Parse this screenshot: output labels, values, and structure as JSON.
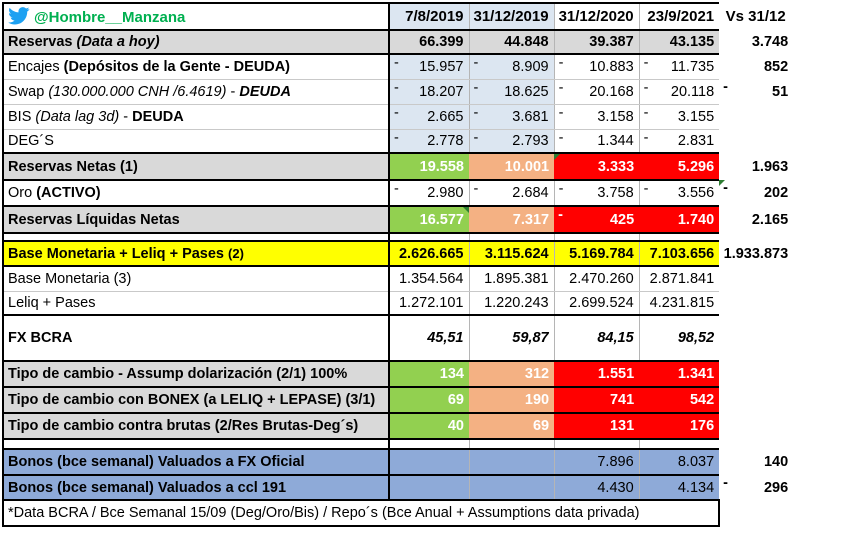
{
  "header": {
    "handle": "@Hombre__Manzana",
    "col1": "7/8/2019",
    "col2": "31/12/2019",
    "col3": "31/12/2020",
    "col4": "23/9/2021",
    "col5": "Vs 31/12"
  },
  "rows": {
    "reservas": {
      "label_a": "Reservas ",
      "label_b": "(Data a hoy)",
      "v1": "66.399",
      "v2": "44.848",
      "v3": "39.387",
      "v4": "43.135",
      "v5": "3.748"
    },
    "encajes": {
      "label_a": "Encajes ",
      "label_b": "(Depósitos de la Gente - DEUDA)",
      "d": "-",
      "v1": "15.957",
      "v2": "8.909",
      "v3": "10.883",
      "v4": "11.735",
      "v5": "852"
    },
    "swap": {
      "label_a": "Swap ",
      "label_b": "(130.000.000 CNH /6.4619)",
      "label_c": " - ",
      "label_d": "DEUDA",
      "d": "-",
      "v1": "18.207",
      "v2": "18.625",
      "v3": "20.168",
      "v4": "20.118",
      "v5": "51"
    },
    "bis": {
      "label_a": "BIS ",
      "label_b": "(Data lag 3d)",
      "label_c": " - ",
      "label_d": "DEUDA",
      "d": "-",
      "v1": "2.665",
      "v2": "3.681",
      "v3": "3.158",
      "v4": "3.155"
    },
    "deg": {
      "label": "DEG´S",
      "d": "-",
      "v1": "2.778",
      "v2": "2.793",
      "v3": "1.344",
      "v4": "2.831"
    },
    "netas": {
      "label": "Reservas Netas (1)",
      "v1": "19.558",
      "v2": "10.001",
      "v3": "3.333",
      "v4": "5.296",
      "v5": "1.963"
    },
    "oro": {
      "label_a": "Oro ",
      "label_b": "(ACTIVO)",
      "d": "-",
      "v1": "2.980",
      "v2": "2.684",
      "v3": "3.758",
      "v4": "3.556",
      "v5": "202"
    },
    "liquidas": {
      "label": "Reservas Líquidas Netas",
      "d": "-",
      "v1": "16.577",
      "v2": "7.317",
      "v3": "425",
      "v4": "1.740",
      "v5": "2.165"
    },
    "base_total": {
      "label_a": "Base Monetaria + Leliq + Pases ",
      "label_b": "(2)",
      "v1": "2.626.665",
      "v2": "3.115.624",
      "v3": "5.169.784",
      "v4": "7.103.656",
      "v5": "1.933.873"
    },
    "base": {
      "label": "Base Monetaria (3)",
      "v1": "1.354.564",
      "v2": "1.895.381",
      "v3": "2.470.260",
      "v4": "2.871.841"
    },
    "leliq": {
      "label": "Leliq + Pases",
      "v1": "1.272.101",
      "v2": "1.220.243",
      "v3": "2.699.524",
      "v4": "4.231.815"
    },
    "fx": {
      "label": "FX BCRA",
      "v1": "45,51",
      "v2": "59,87",
      "v3": "84,15",
      "v4": "98,52"
    },
    "tc1": {
      "label": "Tipo de cambio - Assump dolarización (2/1) 100%",
      "v1": "134",
      "v2": "312",
      "v3": "1.551",
      "v4": "1.341"
    },
    "tc2": {
      "label": "Tipo de cambio con BONEX (a LELIQ + LEPASE) (3/1)",
      "v1": "69",
      "v2": "190",
      "v3": "741",
      "v4": "542"
    },
    "tc3": {
      "label": "Tipo de cambio contra brutas (2/Res Brutas-Deg´s)",
      "v1": "40",
      "v2": "69",
      "v3": "131",
      "v4": "176"
    },
    "bonos1": {
      "label": "Bonos (bce semanal) Valuados a FX Oficial",
      "v3": "7.896",
      "v4": "8.037",
      "v5": "140"
    },
    "bonos2": {
      "label": "Bonos (bce semanal) Valuados a ccl 191",
      "d": "-",
      "v3": "4.430",
      "v4": "4.134",
      "v5": "296"
    }
  },
  "footnote": "*Data BCRA / Bce Semanal 15/09 (Deg/Oro/Bis) / Repo´s (Bce Anual + Assumptions data privada)",
  "colors": {
    "green": "#92d050",
    "orange": "#f4b183",
    "red": "#ff0000",
    "yellow": "#ffff00",
    "gray": "#d9d9d9",
    "lightblue": "#dce6f1",
    "blue": "#8eaad8",
    "handle": "#00b050",
    "twitter": "#1da1f2"
  }
}
